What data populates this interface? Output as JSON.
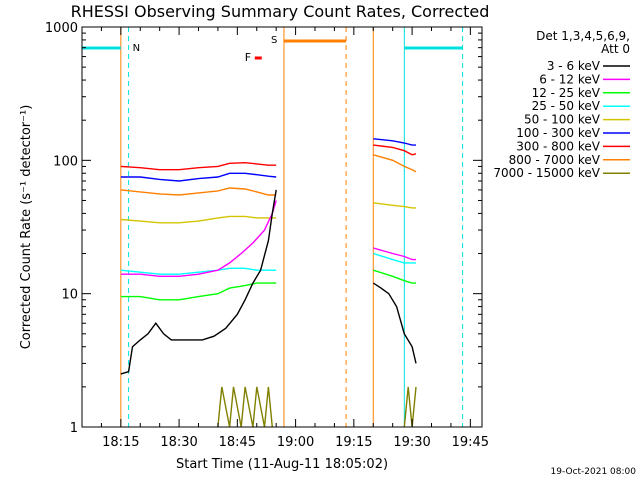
{
  "chart_data": {
    "type": "line",
    "title": "RHESSI Observing Summary Count Rates, Corrected",
    "xlabel": "Start Time (11-Aug-11 18:05:02)",
    "ylabel": "Corrected Count Rate (s⁻¹ detector⁻¹)",
    "yscale": "log",
    "xlim": [
      "18:05",
      "19:48"
    ],
    "ylim": [
      1,
      1000
    ],
    "x_ticks": [
      "18:15",
      "18:30",
      "18:45",
      "19:00",
      "19:15",
      "19:30",
      "19:45"
    ],
    "y_ticks": [
      {
        "value": 1,
        "label": "1"
      },
      {
        "value": 10,
        "label": "10"
      },
      {
        "value": 100,
        "label": "100"
      },
      {
        "value": 1000,
        "label": "1000"
      }
    ],
    "legend": {
      "placement": "right",
      "header": [
        "Det 1,3,4,5,6,9,",
        "Att 0"
      ],
      "entries": [
        {
          "label": "3 - 6 keV",
          "color": "#000000"
        },
        {
          "label": "6 - 12 keV",
          "color": "#ff00ff"
        },
        {
          "label": "12 - 25 keV",
          "color": "#00ff00"
        },
        {
          "label": "25 - 50 keV",
          "color": "#00ffff"
        },
        {
          "label": "50 - 100 keV",
          "color": "#d4c400"
        },
        {
          "label": "100 - 300 keV",
          "color": "#0000ff"
        },
        {
          "label": "300 - 800 keV",
          "color": "#ff0000"
        },
        {
          "label": "800 - 7000 keV",
          "color": "#ff8000"
        },
        {
          "label": "7000 - 15000 keV",
          "color": "#808000"
        }
      ]
    },
    "markers": [
      {
        "label": "N",
        "color": "#00e0e0"
      },
      {
        "label": "S",
        "color": "#ff8000"
      },
      {
        "label": "F",
        "color": "#ff0000"
      }
    ],
    "series": [
      {
        "color": "#ff0000",
        "segments": [
          [
            [
              "18:15",
              90
            ],
            [
              "18:20",
              88
            ],
            [
              "18:25",
              85
            ],
            [
              "18:30",
              85
            ],
            [
              "18:35",
              88
            ],
            [
              "18:40",
              90
            ],
            [
              "18:43",
              95
            ],
            [
              "18:47",
              96
            ],
            [
              "18:50",
              94
            ],
            [
              "18:53",
              92
            ],
            [
              "18:55",
              92
            ]
          ],
          [
            [
              "19:20",
              130
            ],
            [
              "19:25",
              125
            ],
            [
              "19:28",
              118
            ],
            [
              "19:30",
              110
            ],
            [
              "19:31",
              112
            ]
          ]
        ]
      },
      {
        "color": "#0000ff",
        "segments": [
          [
            [
              "18:15",
              75
            ],
            [
              "18:20",
              75
            ],
            [
              "18:25",
              72
            ],
            [
              "18:30",
              70
            ],
            [
              "18:35",
              73
            ],
            [
              "18:40",
              75
            ],
            [
              "18:43",
              80
            ],
            [
              "18:47",
              80
            ],
            [
              "18:50",
              78
            ],
            [
              "18:53",
              76
            ],
            [
              "18:55",
              75
            ]
          ],
          [
            [
              "19:20",
              145
            ],
            [
              "19:25",
              140
            ],
            [
              "19:28",
              135
            ],
            [
              "19:30",
              130
            ],
            [
              "19:31",
              130
            ]
          ]
        ]
      },
      {
        "color": "#ff8000",
        "segments": [
          [
            [
              "18:15",
              60
            ],
            [
              "18:20",
              58
            ],
            [
              "18:25",
              56
            ],
            [
              "18:30",
              55
            ],
            [
              "18:35",
              57
            ],
            [
              "18:40",
              59
            ],
            [
              "18:43",
              62
            ],
            [
              "18:47",
              61
            ],
            [
              "18:50",
              58
            ],
            [
              "18:53",
              55
            ],
            [
              "18:55",
              55
            ]
          ],
          [
            [
              "19:20",
              110
            ],
            [
              "19:25",
              100
            ],
            [
              "19:28",
              90
            ],
            [
              "19:30",
              85
            ],
            [
              "19:31",
              82
            ]
          ]
        ]
      },
      {
        "color": "#d4c400",
        "segments": [
          [
            [
              "18:15",
              36
            ],
            [
              "18:20",
              35
            ],
            [
              "18:25",
              34
            ],
            [
              "18:30",
              34
            ],
            [
              "18:35",
              35
            ],
            [
              "18:40",
              37
            ],
            [
              "18:43",
              38
            ],
            [
              "18:47",
              38
            ],
            [
              "18:50",
              37
            ],
            [
              "18:53",
              37
            ],
            [
              "18:55",
              37
            ]
          ],
          [
            [
              "19:20",
              48
            ],
            [
              "19:25",
              46
            ],
            [
              "19:28",
              45
            ],
            [
              "19:30",
              44
            ],
            [
              "19:31",
              44
            ]
          ]
        ]
      },
      {
        "color": "#00ffff",
        "segments": [
          [
            [
              "18:15",
              15
            ],
            [
              "18:20",
              14.5
            ],
            [
              "18:25",
              14
            ],
            [
              "18:30",
              14
            ],
            [
              "18:35",
              14.5
            ],
            [
              "18:40",
              15
            ],
            [
              "18:43",
              15.5
            ],
            [
              "18:47",
              15.5
            ],
            [
              "18:50",
              15
            ],
            [
              "18:53",
              15
            ],
            [
              "18:55",
              15
            ]
          ],
          [
            [
              "19:20",
              20
            ],
            [
              "19:25",
              18
            ],
            [
              "19:28",
              17
            ],
            [
              "19:30",
              17
            ],
            [
              "19:31",
              17
            ]
          ]
        ]
      },
      {
        "color": "#ff00ff",
        "segments": [
          [
            [
              "18:15",
              14
            ],
            [
              "18:20",
              14
            ],
            [
              "18:25",
              13.5
            ],
            [
              "18:30",
              13.5
            ],
            [
              "18:35",
              14
            ],
            [
              "18:40",
              15
            ],
            [
              "18:43",
              17
            ],
            [
              "18:46",
              20
            ],
            [
              "18:49",
              24
            ],
            [
              "18:52",
              30
            ],
            [
              "18:54",
              40
            ],
            [
              "18:55",
              50
            ]
          ],
          [
            [
              "19:20",
              22
            ],
            [
              "19:25",
              20
            ],
            [
              "19:28",
              19
            ],
            [
              "19:30",
              18
            ],
            [
              "19:31",
              18
            ]
          ]
        ]
      },
      {
        "color": "#00ff00",
        "segments": [
          [
            [
              "18:15",
              9.5
            ],
            [
              "18:20",
              9.5
            ],
            [
              "18:25",
              9
            ],
            [
              "18:30",
              9
            ],
            [
              "18:35",
              9.5
            ],
            [
              "18:40",
              10
            ],
            [
              "18:43",
              11
            ],
            [
              "18:47",
              11.5
            ],
            [
              "18:50",
              12
            ],
            [
              "18:53",
              12
            ],
            [
              "18:55",
              12
            ]
          ],
          [
            [
              "19:20",
              15
            ],
            [
              "19:25",
              13.5
            ],
            [
              "19:28",
              12.5
            ],
            [
              "19:30",
              12
            ],
            [
              "19:31",
              12
            ]
          ]
        ]
      },
      {
        "color": "#000000",
        "segments": [
          [
            [
              "18:15",
              2.5
            ],
            [
              "18:17",
              2.6
            ],
            [
              "18:18",
              4
            ],
            [
              "18:20",
              4.5
            ],
            [
              "18:22",
              5
            ],
            [
              "18:24",
              6
            ],
            [
              "18:26",
              5
            ],
            [
              "18:28",
              4.5
            ],
            [
              "18:30",
              4.5
            ],
            [
              "18:33",
              4.5
            ],
            [
              "18:36",
              4.5
            ],
            [
              "18:39",
              4.8
            ],
            [
              "18:42",
              5.5
            ],
            [
              "18:45",
              7
            ],
            [
              "18:47",
              9
            ],
            [
              "18:49",
              12
            ],
            [
              "18:51",
              15
            ],
            [
              "18:53",
              25
            ],
            [
              "18:54",
              40
            ],
            [
              "18:55",
              60
            ]
          ],
          [
            [
              "19:20",
              12
            ],
            [
              "19:22",
              11
            ],
            [
              "19:24",
              10
            ],
            [
              "19:26",
              8
            ],
            [
              "19:28",
              5
            ],
            [
              "19:30",
              4
            ],
            [
              "19:31",
              3
            ]
          ]
        ]
      },
      {
        "color": "#808000",
        "segments": [
          [
            [
              "18:40",
              1
            ],
            [
              "18:41",
              2
            ],
            [
              "18:43",
              1
            ],
            [
              "18:44",
              2
            ],
            [
              "18:46",
              1
            ],
            [
              "18:47",
              2
            ],
            [
              "18:49",
              1
            ],
            [
              "18:50",
              2
            ],
            [
              "18:52",
              1
            ],
            [
              "18:53",
              2
            ],
            [
              "18:54",
              1
            ]
          ],
          [
            [
              "19:28",
              1
            ],
            [
              "19:29",
              2
            ],
            [
              "19:30",
              1
            ],
            [
              "19:31",
              2
            ]
          ]
        ]
      }
    ]
  },
  "footer": {
    "date_stamp": "19-Oct-2021 08:00"
  }
}
